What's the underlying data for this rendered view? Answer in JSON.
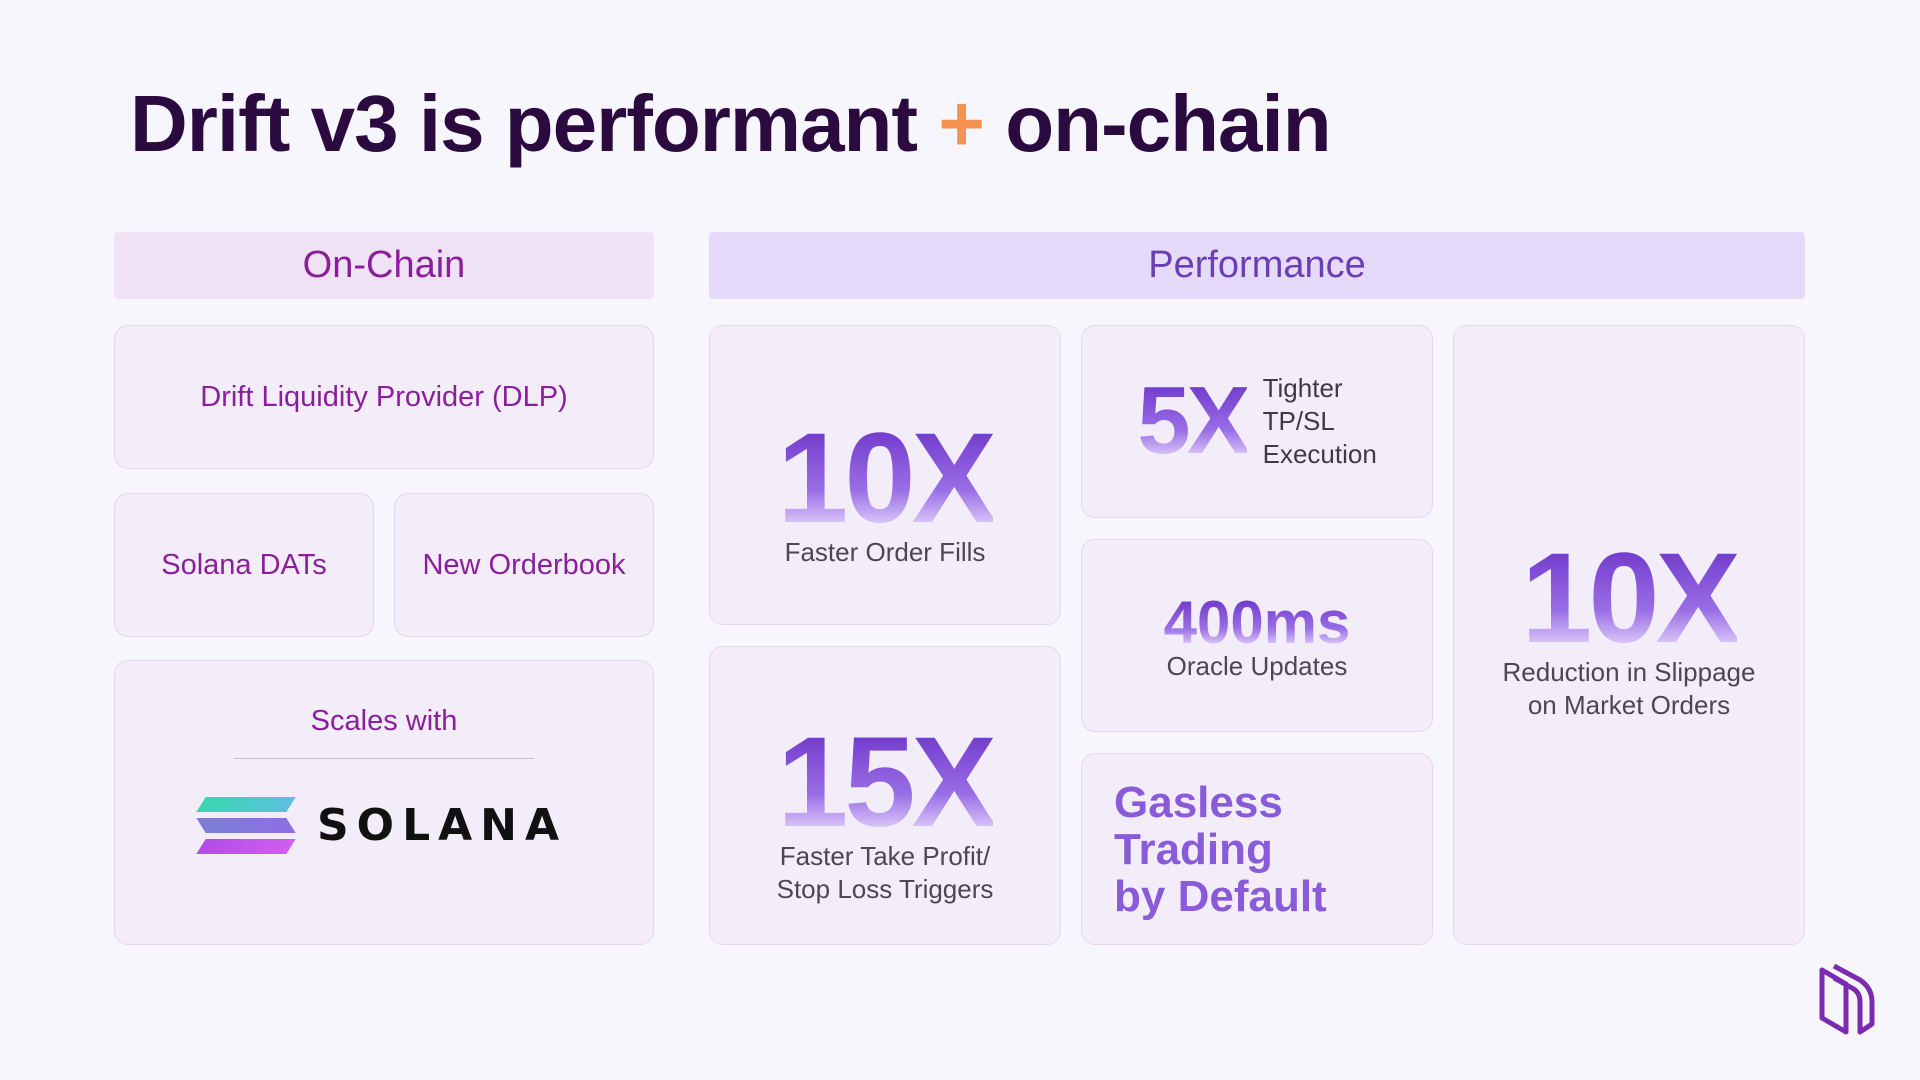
{
  "title": {
    "part1": "Drift v3 is performant",
    "plus": "+",
    "part2": "on-chain"
  },
  "sections": {
    "onchain": "On-Chain",
    "performance": "Performance"
  },
  "onchain": {
    "dlp": "Drift Liquidity Provider (DLP)",
    "dats": "Solana DATs",
    "orderbook": "New Orderbook",
    "scales_with": "Scales with",
    "solana_logo_text": "SOLANA"
  },
  "performance": {
    "fills": {
      "value": "10X",
      "label": "Faster Order Fills"
    },
    "tpsl": {
      "value": "5X",
      "label_lines": [
        "Tighter",
        "TP/SL",
        "Execution"
      ]
    },
    "oracle": {
      "value": "400ms",
      "label": "Oracle Updates"
    },
    "triggers": {
      "value": "15X",
      "label_lines": [
        "Faster Take Profit/",
        "Stop Loss Triggers"
      ]
    },
    "gasless": {
      "lines": [
        "Gasless",
        "Trading",
        "by Default"
      ]
    },
    "slippage": {
      "value": "10X",
      "label_lines": [
        "Reduction in Slippage",
        "on Market Orders"
      ]
    }
  },
  "icons": [
    "solana-logo-icon",
    "drift-logo-icon"
  ],
  "colors": {
    "accent_orange": "#f5924e",
    "title": "#2a0a3f",
    "onchain_text": "#8a1f9c",
    "perf_text": "#6b3fb3"
  }
}
